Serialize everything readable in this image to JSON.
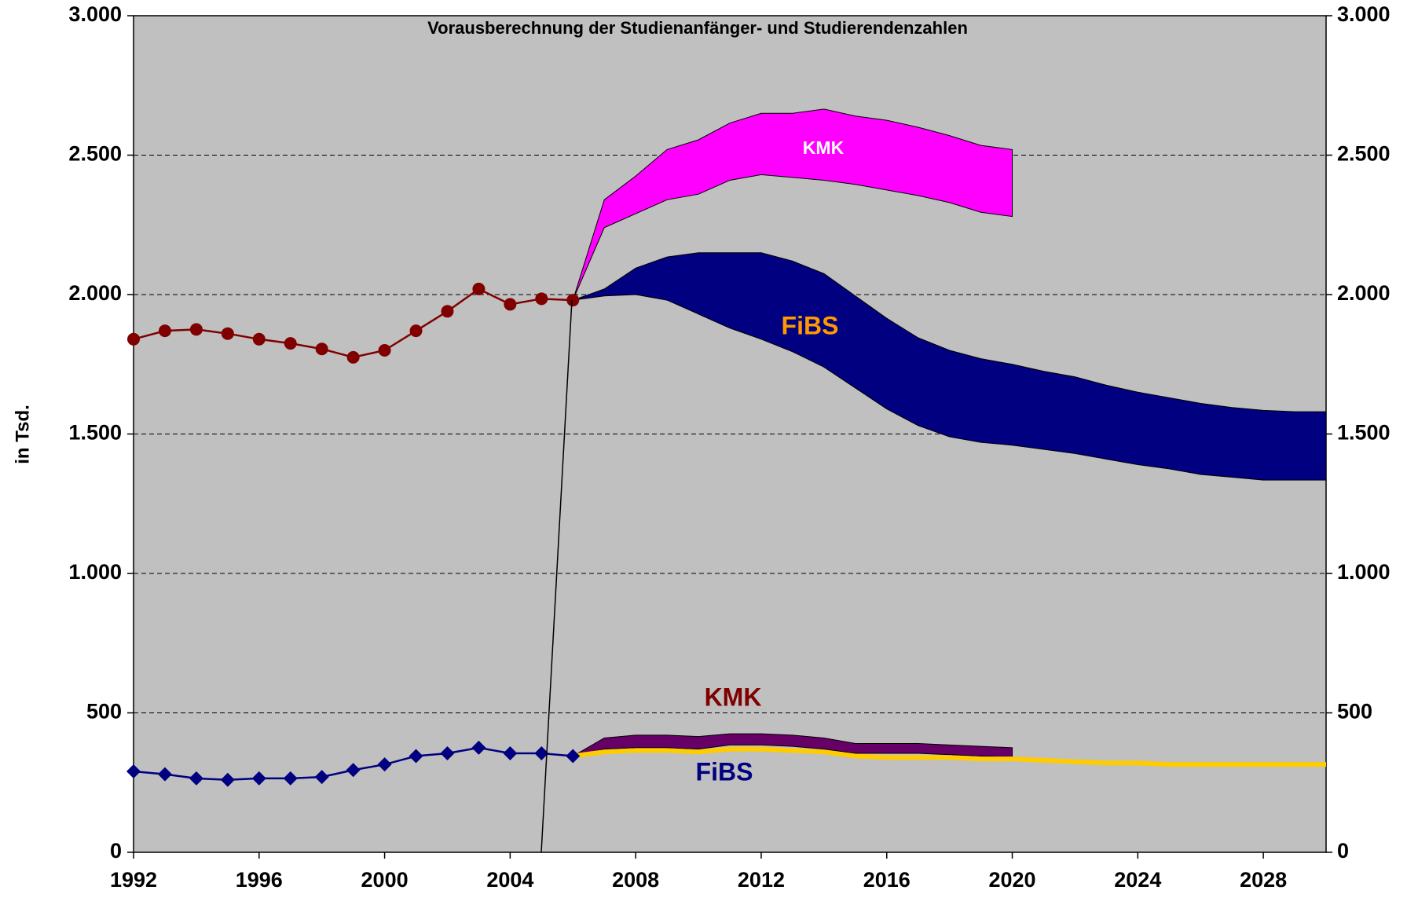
{
  "chart_data": {
    "type": "line",
    "title": "Vorausberechnung der Studienanfänger- und Studierendenzahlen",
    "ylabel": "in Tsd.",
    "xlim": [
      1992,
      2030
    ],
    "xticks": [
      1992,
      1996,
      2000,
      2004,
      2008,
      2012,
      2016,
      2020,
      2024,
      2028
    ],
    "ylim": [
      0,
      3000
    ],
    "yticks": [
      0,
      500,
      {
        "value": 1000,
        "label": "1.000"
      },
      {
        "value": 1500,
        "label": "1.500"
      },
      {
        "value": 2000,
        "label": "2.000"
      },
      {
        "value": 2500,
        "label": "2.500"
      },
      {
        "value": 3000,
        "label": "3.000"
      }
    ],
    "y2lim": [
      0,
      3000
    ],
    "y2ticks": [
      0,
      500,
      {
        "value": 1000,
        "label": "1.000"
      },
      {
        "value": 1500,
        "label": "1.500"
      },
      {
        "value": 2000,
        "label": "2.000"
      },
      {
        "value": 2500,
        "label": "2.500"
      },
      {
        "value": 3000,
        "label": "3.000"
      }
    ],
    "grid": true,
    "series": [
      {
        "name": "KMK",
        "type": "band",
        "color": "#ff00ff",
        "label_color": "#ffffff",
        "x": [
          2006,
          2007,
          2008,
          2009,
          2010,
          2011,
          2012,
          2013,
          2014,
          2015,
          2016,
          2017,
          2018,
          2019,
          2020
        ],
        "upper": [
          1980,
          2340,
          2425,
          2520,
          2555,
          2615,
          2650,
          2650,
          2665,
          2640,
          2625,
          2600,
          2570,
          2535,
          2520
        ],
        "lower": [
          1980,
          2240,
          2290,
          2340,
          2360,
          2410,
          2430,
          2420,
          2410,
          2395,
          2375,
          2355,
          2330,
          2295,
          2280
        ]
      },
      {
        "name": "FiBS",
        "type": "band",
        "color": "#000080",
        "label_color": "#ff9900",
        "x": [
          2006,
          2007,
          2008,
          2009,
          2010,
          2011,
          2012,
          2013,
          2014,
          2015,
          2016,
          2017,
          2018,
          2019,
          2020,
          2021,
          2022,
          2023,
          2024,
          2025,
          2026,
          2027,
          2028,
          2029,
          2030
        ],
        "upper": [
          1980,
          2020,
          2095,
          2135,
          2150,
          2150,
          2150,
          2120,
          2075,
          1995,
          1915,
          1845,
          1800,
          1770,
          1750,
          1725,
          1705,
          1675,
          1650,
          1630,
          1610,
          1595,
          1585,
          1580,
          1580
        ],
        "lower": [
          1980,
          1995,
          2000,
          1980,
          1930,
          1880,
          1840,
          1795,
          1740,
          1665,
          1590,
          1530,
          1490,
          1470,
          1460,
          1445,
          1430,
          1410,
          1390,
          1375,
          1355,
          1345,
          1335,
          1335,
          1335
        ]
      },
      {
        "name": "KMK",
        "type": "band",
        "color": "#660066",
        "label_color": "#800000",
        "x": [
          2006,
          2007,
          2008,
          2009,
          2010,
          2011,
          2012,
          2013,
          2014,
          2015,
          2016,
          2017,
          2018,
          2019,
          2020
        ],
        "upper": [
          345,
          410,
          420,
          420,
          415,
          425,
          425,
          420,
          410,
          390,
          390,
          390,
          385,
          380,
          375
        ],
        "lower": [
          345,
          370,
          375,
          375,
          370,
          385,
          385,
          380,
          370,
          355,
          355,
          355,
          350,
          345,
          340
        ]
      },
      {
        "name": "FiBS",
        "type": "line",
        "color": "#ffcc00",
        "label_color": "#000080",
        "width": 6,
        "x": [
          2006,
          2007,
          2008,
          2009,
          2010,
          2011,
          2012,
          2013,
          2014,
          2015,
          2016,
          2017,
          2018,
          2019,
          2020,
          2021,
          2022,
          2023,
          2024,
          2025,
          2026,
          2027,
          2028,
          2029,
          2030
        ],
        "values": [
          345,
          360,
          365,
          365,
          360,
          370,
          370,
          365,
          360,
          345,
          340,
          340,
          340,
          335,
          335,
          330,
          325,
          320,
          320,
          315,
          315,
          315,
          315,
          315,
          315
        ]
      },
      {
        "type": "line",
        "color": "#800000",
        "marker": "circle",
        "width": 2.5,
        "x": [
          1992,
          1993,
          1994,
          1995,
          1996,
          1997,
          1998,
          1999,
          2000,
          2001,
          2002,
          2003,
          2004,
          2005,
          2006
        ],
        "values": [
          1840,
          1870,
          1875,
          1860,
          1840,
          1825,
          1805,
          1775,
          1800,
          1870,
          1940,
          2020,
          1965,
          1985,
          1980
        ]
      },
      {
        "type": "line",
        "color": "#000080",
        "marker": "diamond",
        "width": 2.5,
        "x": [
          1992,
          1993,
          1994,
          1995,
          1996,
          1997,
          1998,
          1999,
          2000,
          2001,
          2002,
          2003,
          2004,
          2005,
          2006
        ],
        "values": [
          290,
          280,
          265,
          260,
          265,
          265,
          270,
          295,
          315,
          345,
          355,
          375,
          355,
          355,
          345
        ]
      }
    ]
  }
}
